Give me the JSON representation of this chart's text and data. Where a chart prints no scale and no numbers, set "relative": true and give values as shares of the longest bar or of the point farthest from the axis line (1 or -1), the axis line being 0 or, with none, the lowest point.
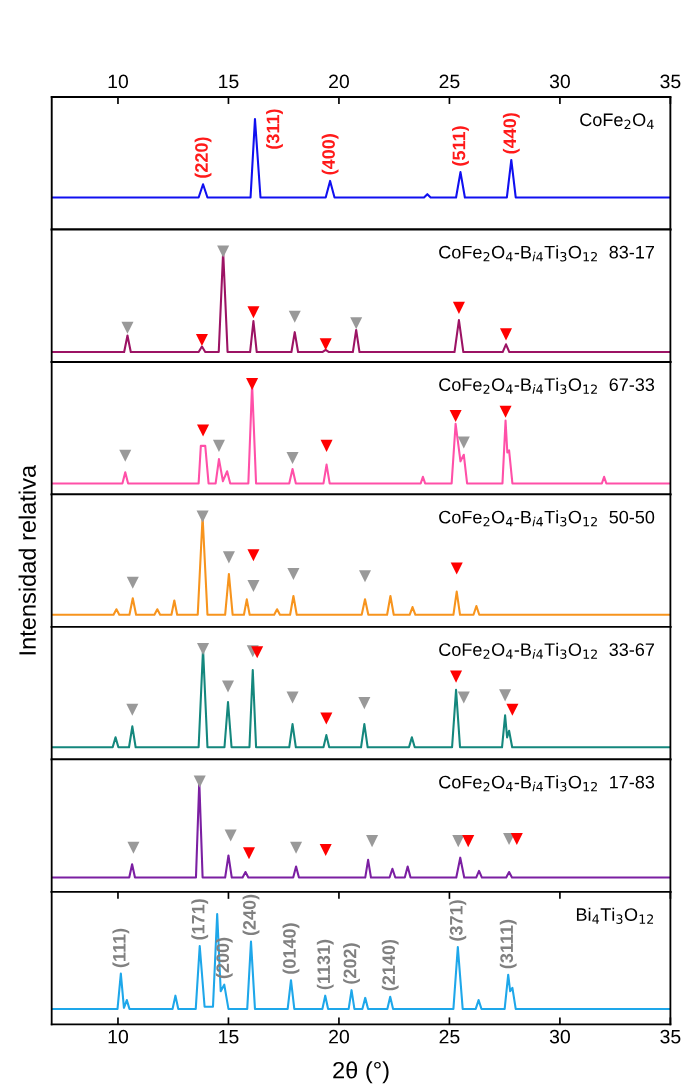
{
  "chart_data": [
    {
      "type": "line",
      "relative": true,
      "title": "CoFe$_{2}$O$_{4}$",
      "xlim": [
        7,
        35
      ],
      "x2lim": [
        7,
        35
      ],
      "x2ticks": [
        10,
        15,
        20,
        25,
        30,
        35
      ],
      "tick_labels": false,
      "series": [
        {
          "color": "#1010f0",
          "x": [
            7,
            13.65,
            13.85,
            14.05,
            16.0,
            16.2,
            16.45,
            19.4,
            19.6,
            19.8,
            23.85,
            24.0,
            24.15,
            25.3,
            25.5,
            25.7,
            27.6,
            27.8,
            28.0,
            35
          ],
          "values": [
            0.29,
            0.29,
            0.41,
            0.29,
            0.29,
            1,
            0.29,
            0.29,
            0.44,
            0.29,
            0.29,
            0.32,
            0.29,
            0.29,
            0.52,
            0.29,
            0.29,
            0.63,
            0.29,
            0.29
          ]
        }
      ],
      "annotations": [
        {
          "text": "(220)",
          "x": 13.85,
          "y": 0.41
        },
        {
          "text": "(311)",
          "x": 16.2,
          "y": 1
        },
        {
          "text": "(400)",
          "x": 19.6,
          "y": 0.44
        },
        {
          "text": "(511)",
          "x": 25.5,
          "y": 0.52
        },
        {
          "text": "(440)",
          "x": 27.8,
          "y": 0.63
        }
      ]
    },
    {
      "type": "line",
      "relative": true,
      "title": "CoFe$_{2}$O$_{4}$-B$_{i4}$Ti$_{3}$O$_{12}$  83-17",
      "xlim": [
        7,
        35
      ],
      "tick_labels": false,
      "series": [
        {
          "color": "#9c1364",
          "x": [
            7,
            10.28,
            10.43,
            10.58,
            13.65,
            13.8,
            13.95,
            14.56,
            14.76,
            14.96,
            15.98,
            16.13,
            16.28,
            17.85,
            18.0,
            18.15,
            19.25,
            19.4,
            19.55,
            20.63,
            20.78,
            20.93,
            25.23,
            25.43,
            25.63,
            27.41,
            27.56,
            27.71,
            35
          ],
          "values": [
            0.09,
            0.09,
            0.24,
            0.09,
            0.09,
            0.14,
            0.09,
            0.09,
            1,
            0.09,
            0.09,
            0.37,
            0.09,
            0.09,
            0.27,
            0.09,
            0.09,
            0.11,
            0.09,
            0.09,
            0.29,
            0.09,
            0.09,
            0.38,
            0.09,
            0.09,
            0.16,
            0.09,
            0.09
          ]
        },
        {
          "type": "scatter",
          "marker": "triangle",
          "color": "#999999",
          "x": [
            10.43,
            14.76,
            18.0,
            20.78
          ],
          "values": [
            0.31,
            1,
            0.41,
            0.35
          ]
        },
        {
          "type": "scatter",
          "marker": "triangle",
          "color": "#ff0000",
          "x": [
            13.8,
            16.13,
            19.4,
            25.43,
            27.56
          ],
          "values": [
            0.2,
            0.45,
            0.16,
            0.49,
            0.25
          ]
        }
      ]
    },
    {
      "type": "line",
      "relative": true,
      "title": "CoFe$_{2}$O$_{4}$-B$_{i4}$Ti$_{3}$O$_{12}$  67-33",
      "xlim": [
        7,
        35
      ],
      "tick_labels": false,
      "series": [
        {
          "color": "#ff50a8",
          "x": [
            7,
            10.2,
            10.33,
            10.46,
            13.65,
            13.75,
            13.95,
            14.1,
            14.42,
            14.57,
            14.75,
            14.94,
            15.08,
            15.9,
            16.07,
            16.25,
            17.75,
            17.9,
            18.05,
            19.3,
            19.44,
            19.58,
            23.7,
            23.8,
            23.9,
            25.1,
            25.28,
            25.5,
            25.65,
            25.8,
            27.4,
            27.54,
            27.62,
            27.7,
            27.85,
            31.9,
            32.0,
            32.1,
            35
          ],
          "values": [
            0.1,
            0.1,
            0.2,
            0.1,
            0.1,
            0.44,
            0.44,
            0.1,
            0.1,
            0.32,
            0.12,
            0.21,
            0.1,
            0.1,
            1,
            0.1,
            0.1,
            0.23,
            0.1,
            0.1,
            0.27,
            0.1,
            0.1,
            0.16,
            0.1,
            0.1,
            0.64,
            0.3,
            0.36,
            0.1,
            0.1,
            0.67,
            0.38,
            0.4,
            0.1,
            0.1,
            0.16,
            0.1,
            0.1
          ]
        },
        {
          "type": "scatter",
          "marker": "triangle",
          "color": "#999999",
          "x": [
            10.33,
            14.57,
            17.9,
            25.65
          ],
          "values": [
            0.35,
            0.44,
            0.33,
            0.47
          ]
        },
        {
          "type": "scatter",
          "marker": "triangle",
          "color": "#ff0000",
          "x": [
            13.85,
            16.07,
            19.44,
            25.28,
            27.54
          ],
          "values": [
            0.58,
            1,
            0.44,
            0.71,
            0.75
          ]
        }
      ]
    },
    {
      "type": "line",
      "relative": true,
      "title": "CoFe$_{2}$O$_{4}$-B$_{i4}$Ti$_{3}$O$_{12}$  50-50",
      "ylabel": "Intensidad relativa",
      "xlim": [
        7,
        35
      ],
      "tick_labels": false,
      "series": [
        {
          "color": "#f7941d",
          "x": [
            7,
            9.8,
            9.93,
            10.06,
            10.52,
            10.67,
            10.82,
            11.65,
            11.78,
            11.91,
            12.42,
            12.55,
            12.68,
            13.61,
            13.83,
            14.05,
            14.85,
            15.02,
            15.19,
            15.7,
            15.83,
            15.96,
            17.07,
            17.2,
            17.33,
            17.79,
            17.94,
            18.09,
            21.03,
            21.18,
            21.33,
            22.18,
            22.33,
            22.48,
            23.2,
            23.33,
            23.46,
            25.18,
            25.33,
            25.48,
            26.09,
            26.22,
            26.35,
            35
          ],
          "values": [
            0.11,
            0.11,
            0.16,
            0.11,
            0.11,
            0.26,
            0.11,
            0.11,
            0.16,
            0.11,
            0.11,
            0.24,
            0.11,
            0.11,
            1,
            0.11,
            0.11,
            0.48,
            0.11,
            0.11,
            0.25,
            0.11,
            0.11,
            0.16,
            0.11,
            0.11,
            0.28,
            0.11,
            0.11,
            0.25,
            0.11,
            0.11,
            0.28,
            0.11,
            0.11,
            0.18,
            0.11,
            0.11,
            0.32,
            0.11,
            0.11,
            0.19,
            0.11,
            0.11
          ]
        },
        {
          "type": "scatter",
          "marker": "triangle",
          "color": "#999999",
          "x": [
            10.67,
            13.83,
            15.02,
            16.13,
            17.94,
            21.18
          ],
          "values": [
            0.4,
            1,
            0.63,
            0.37,
            0.48,
            0.46
          ]
        },
        {
          "type": "scatter",
          "marker": "triangle",
          "color": "#ff0000",
          "x": [
            16.13,
            25.33
          ],
          "values": [
            0.65,
            0.53
          ]
        }
      ]
    },
    {
      "type": "line",
      "relative": true,
      "title": "CoFe$_{2}$O$_{4}$-B$_{i4}$Ti$_{3}$O$_{12}$  33-67",
      "xlim": [
        7,
        35
      ],
      "tick_labels": false,
      "series": [
        {
          "color": "#14877d",
          "x": [
            7,
            9.76,
            9.89,
            10.02,
            10.5,
            10.65,
            10.8,
            13.65,
            13.85,
            14.05,
            14.82,
            14.98,
            15.14,
            15.95,
            16.1,
            16.25,
            17.75,
            17.9,
            18.05,
            19.3,
            19.43,
            19.56,
            21.0,
            21.15,
            21.3,
            23.17,
            23.3,
            23.43,
            25.12,
            25.3,
            25.48,
            27.38,
            27.52,
            27.61,
            27.7,
            27.84,
            35
          ],
          "values": [
            0.11,
            0.11,
            0.2,
            0.11,
            0.11,
            0.3,
            0.11,
            0.11,
            1,
            0.11,
            0.11,
            0.52,
            0.11,
            0.11,
            0.81,
            0.11,
            0.11,
            0.32,
            0.11,
            0.11,
            0.22,
            0.11,
            0.11,
            0.32,
            0.11,
            0.11,
            0.2,
            0.11,
            0.11,
            0.63,
            0.11,
            0.11,
            0.4,
            0.2,
            0.26,
            0.11,
            0.11
          ]
        },
        {
          "type": "scatter",
          "marker": "triangle",
          "color": "#999999",
          "x": [
            10.65,
            13.85,
            14.98,
            16.1,
            17.9,
            21.15,
            25.65,
            27.52
          ],
          "values": [
            0.45,
            1,
            0.66,
            0.98,
            0.56,
            0.51,
            0.56,
            0.58
          ]
        },
        {
          "type": "scatter",
          "marker": "triangle",
          "color": "#ff0000",
          "x": [
            16.3,
            19.43,
            25.3,
            27.85
          ],
          "values": [
            0.97,
            0.37,
            0.75,
            0.45
          ]
        }
      ]
    },
    {
      "type": "line",
      "relative": true,
      "title": "CoFe$_{2}$O$_{4}$-B$_{i4}$Ti$_{3}$O$_{12}$  17-83",
      "xlim": [
        7,
        35
      ],
      "tick_labels": false,
      "series": [
        {
          "color": "#7b1fa2",
          "x": [
            7,
            10.51,
            10.64,
            10.77,
            13.53,
            13.68,
            13.83,
            14.85,
            15.0,
            15.15,
            15.64,
            15.77,
            15.9,
            17.93,
            18.06,
            18.19,
            21.19,
            21.32,
            21.45,
            22.29,
            22.42,
            22.55,
            22.98,
            23.11,
            23.24,
            25.31,
            25.49,
            25.67,
            26.21,
            26.34,
            26.47,
            27.57,
            27.7,
            27.83,
            35
          ],
          "values": [
            0.13,
            0.13,
            0.25,
            0.13,
            0.13,
            1,
            0.13,
            0.13,
            0.33,
            0.13,
            0.13,
            0.18,
            0.13,
            0.13,
            0.23,
            0.13,
            0.13,
            0.29,
            0.13,
            0.13,
            0.21,
            0.13,
            0.13,
            0.23,
            0.13,
            0.13,
            0.31,
            0.13,
            0.13,
            0.19,
            0.13,
            0.13,
            0.18,
            0.13,
            0.13
          ]
        },
        {
          "type": "scatter",
          "marker": "triangle",
          "color": "#999999",
          "x": [
            10.7,
            13.7,
            15.1,
            18.06,
            21.5,
            25.4,
            27.7
          ],
          "values": [
            0.4,
            1,
            0.51,
            0.4,
            0.46,
            0.46,
            0.48
          ]
        },
        {
          "type": "scatter",
          "marker": "triangle",
          "color": "#ff0000",
          "x": [
            15.93,
            19.4,
            25.85,
            28.05
          ],
          "values": [
            0.35,
            0.38,
            0.46,
            0.48
          ]
        }
      ]
    },
    {
      "type": "line",
      "relative": true,
      "title": "Bi$_{4}$Ti$_{3}$O$_{12}$",
      "xlabel": "2θ (°)",
      "xlim": [
        7,
        35
      ],
      "xticks": [
        10,
        15,
        20,
        25,
        30,
        35
      ],
      "tick_labels": "x",
      "series": [
        {
          "color": "#1ea7ea",
          "x": [
            7,
            9.98,
            10.13,
            10.27,
            10.4,
            10.52,
            12.47,
            12.6,
            12.73,
            13.52,
            13.7,
            13.92,
            14.3,
            14.49,
            14.65,
            14.81,
            15.0,
            15.85,
            16.02,
            16.2,
            17.68,
            17.83,
            17.98,
            19.25,
            19.38,
            19.51,
            20.44,
            20.57,
            20.7,
            21.06,
            21.19,
            21.32,
            22.19,
            22.32,
            22.45,
            25.18,
            25.38,
            25.6,
            26.19,
            26.32,
            26.45,
            27.5,
            27.66,
            27.75,
            27.85,
            28.0,
            35
          ],
          "values": [
            0.14,
            0.14,
            0.46,
            0.15,
            0.22,
            0.14,
            0.14,
            0.26,
            0.14,
            0.14,
            0.71,
            0.16,
            0.16,
            1,
            0.3,
            0.36,
            0.14,
            0.14,
            0.75,
            0.14,
            0.14,
            0.4,
            0.14,
            0.14,
            0.26,
            0.14,
            0.14,
            0.31,
            0.14,
            0.14,
            0.24,
            0.14,
            0.14,
            0.25,
            0.14,
            0.14,
            0.7,
            0.14,
            0.14,
            0.22,
            0.14,
            0.14,
            0.45,
            0.3,
            0.33,
            0.14,
            0.14
          ]
        }
      ],
      "annotations": [
        {
          "text": "(111)",
          "x": 10.13,
          "y": 0.46
        },
        {
          "text": "(171)",
          "x": 13.7,
          "y": 0.71
        },
        {
          "text": "(200)",
          "x": 14.81,
          "y": 0.36
        },
        {
          "text": "(240)",
          "x": 16.02,
          "y": 0.75
        },
        {
          "text": "(0140)",
          "x": 17.83,
          "y": 0.4
        },
        {
          "text": "(1131)",
          "x": 19.38,
          "y": 0.26
        },
        {
          "text": "(202)",
          "x": 20.57,
          "y": 0.31
        },
        {
          "text": "(2140)",
          "x": 22.32,
          "y": 0.25
        },
        {
          "text": "(371)",
          "x": 25.38,
          "y": 0.7
        },
        {
          "text": "(3111)",
          "x": 27.66,
          "y": 0.45
        }
      ]
    }
  ]
}
